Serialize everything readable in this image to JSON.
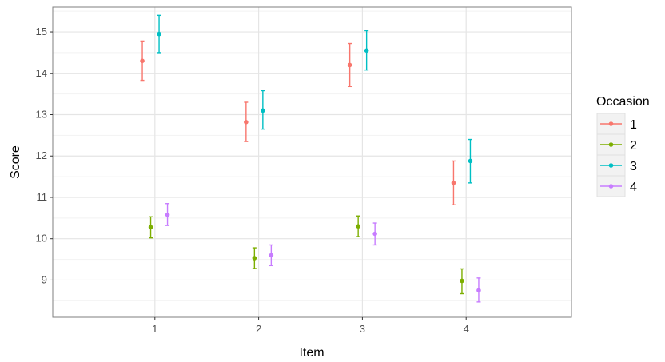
{
  "chart_data": {
    "type": "scatter",
    "subtype": "dodged point with error bars",
    "title": "",
    "xlabel": "Item",
    "ylabel": "Score",
    "categories": [
      "1",
      "2",
      "3",
      "4"
    ],
    "yticks": [
      "9",
      "10",
      "11",
      "12",
      "13",
      "14",
      "15"
    ],
    "ylim": [
      8.1,
      15.6
    ],
    "grid": true,
    "legend": {
      "title": "Occasion",
      "position": "right"
    },
    "series": [
      {
        "name": "1",
        "color": "#F8766D",
        "values": [
          14.3,
          12.82,
          14.2,
          11.35
        ],
        "lower": [
          13.83,
          12.35,
          13.68,
          10.82
        ],
        "upper": [
          14.78,
          13.3,
          14.72,
          11.88
        ]
      },
      {
        "name": "2",
        "color": "#7CAE00",
        "values": [
          10.28,
          9.53,
          10.3,
          8.98
        ],
        "lower": [
          10.02,
          9.28,
          10.05,
          8.67
        ],
        "upper": [
          10.53,
          9.78,
          10.55,
          9.27
        ]
      },
      {
        "name": "3",
        "color": "#00BFC4",
        "values": [
          14.95,
          13.1,
          14.55,
          11.88
        ],
        "lower": [
          14.5,
          12.65,
          14.08,
          11.35
        ],
        "upper": [
          15.4,
          13.58,
          15.03,
          12.4
        ]
      },
      {
        "name": "4",
        "color": "#C77CFF",
        "values": [
          10.58,
          9.6,
          10.12,
          8.75
        ],
        "lower": [
          10.32,
          9.35,
          9.85,
          8.47
        ],
        "upper": [
          10.85,
          9.85,
          10.38,
          9.05
        ]
      }
    ]
  }
}
